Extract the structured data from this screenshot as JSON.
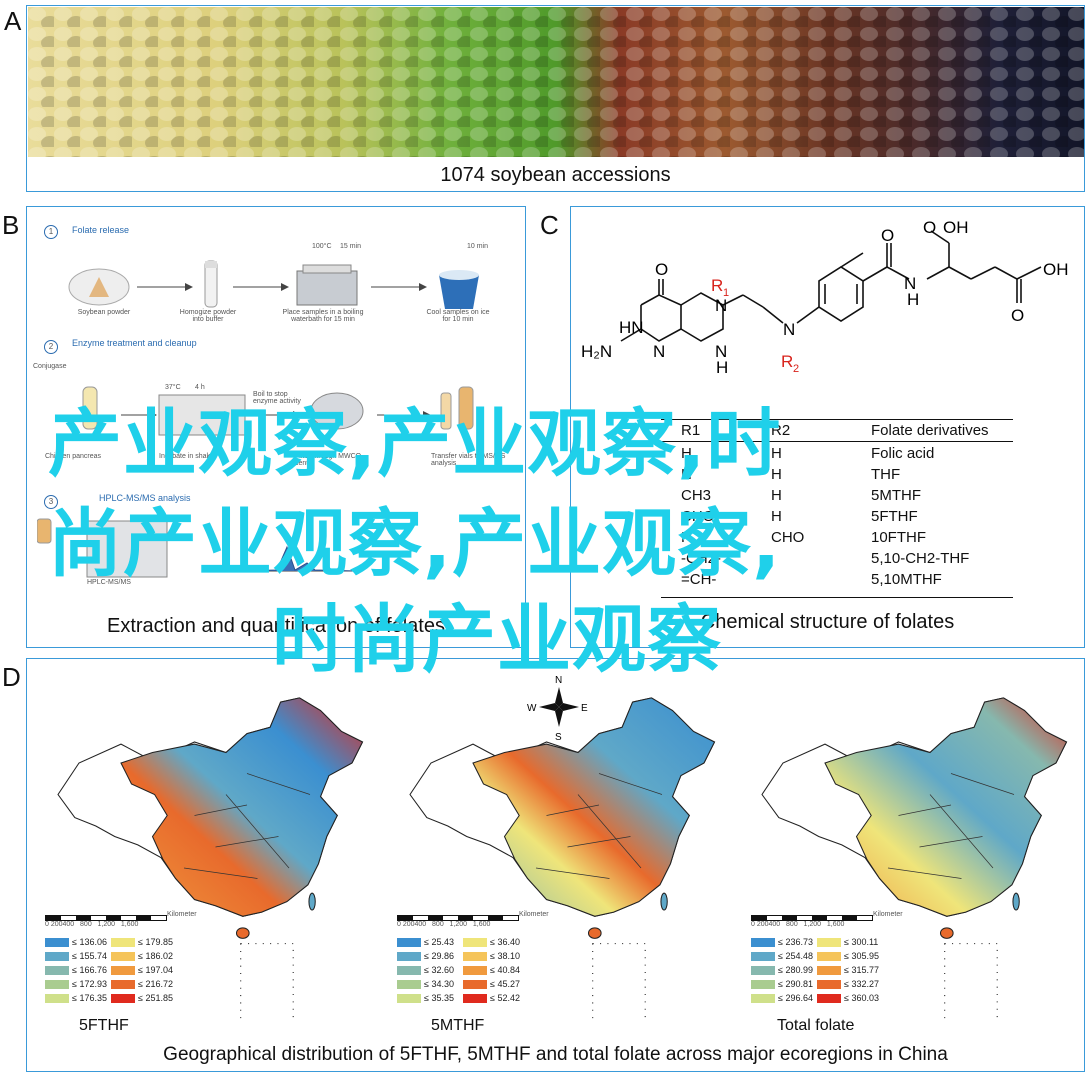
{
  "panels": {
    "a": {
      "letter": "A",
      "caption": "1074 soybean accessions"
    },
    "b": {
      "letter": "B",
      "caption": "Extraction and quantification of folates",
      "steps": [
        {
          "num": "1",
          "title": "Folate release",
          "items": [
            "Soybean powder",
            "Homogize powder into buffer",
            "Place samples in a boiling waterbath for 15 min",
            "Cool samples on ice for 10 min"
          ],
          "temp": "100°C",
          "time1": "15 min",
          "time2": "10 min"
        },
        {
          "num": "2",
          "title": "Enzyme treatment and cleanup",
          "items": [
            "Conjugase",
            "Chicken pancreas",
            "Incubate in shaker",
            "Boil to stop enzyme activity",
            "Filter through MWCO centr.",
            "Transfer vials to MS/MS analysis"
          ],
          "temp": "37°C",
          "time1": "4 h"
        },
        {
          "num": "3",
          "title": "HPLC-MS/MS analysis",
          "items": [
            "HPLC-MS/MS"
          ]
        }
      ]
    },
    "c": {
      "letter": "C",
      "caption": "Chemical structure of folates",
      "molecule": {
        "r1": "R",
        "r1_sub": "1",
        "r2": "R",
        "r2_sub": "2",
        "labels": [
          "O",
          "OH",
          "O",
          "OH",
          "O",
          "HN",
          "N",
          "H",
          "N",
          "H",
          "N",
          "H₂N",
          "N",
          "N",
          "H"
        ]
      },
      "table": {
        "headers": [
          "R1",
          "R2",
          "Folate derivatives"
        ],
        "rows": [
          [
            "H",
            "H",
            "Folic acid"
          ],
          [
            "H",
            "H",
            "THF"
          ],
          [
            "CH3",
            "H",
            "5MTHF"
          ],
          [
            "CHO",
            "H",
            "5FTHF"
          ],
          [
            "H",
            "CHO",
            "10FTHF"
          ],
          [
            "-CH2-",
            "",
            "5,10-CH2-THF"
          ],
          [
            "=CH-",
            "",
            "5,10MTHF"
          ]
        ]
      }
    },
    "d": {
      "letter": "D",
      "caption": "Geographical distribution of 5FTHF, 5MTHF and total folate across major ecoregions in China",
      "compass": {
        "n": "N",
        "s": "S",
        "e": "E",
        "w": "W"
      },
      "scale_ticks": "0 200400   800   1,200   1,600",
      "scale_unit": "Kilometer",
      "maps": [
        {
          "title": "5FTHF",
          "legend": [
            "≤ 136.06",
            "≤ 155.74",
            "≤ 166.76",
            "≤ 172.93",
            "≤ 176.35",
            "≤ 179.85",
            "≤ 186.02",
            "≤ 197.04",
            "≤ 216.72",
            "≤ 251.85"
          ]
        },
        {
          "title": "5MTHF",
          "legend": [
            "≤ 25.43",
            "≤ 29.86",
            "≤ 32.60",
            "≤ 34.30",
            "≤ 35.35",
            "≤ 36.40",
            "≤ 38.10",
            "≤ 40.84",
            "≤ 45.27",
            "≤ 52.42"
          ]
        },
        {
          "title": "Total folate",
          "legend": [
            "≤ 236.73",
            "≤ 254.48",
            "≤ 280.99",
            "≤ 290.81",
            "≤ 296.64",
            "≤ 300.11",
            "≤ 305.95",
            "≤ 315.77",
            "≤ 332.27",
            "≤ 360.03"
          ]
        }
      ],
      "legend_colors": [
        "#3b8fd0",
        "#5fa8c8",
        "#86b8ae",
        "#a9cc90",
        "#cfe08a",
        "#efe57a",
        "#f5c45a",
        "#f09a3e",
        "#e86a2c",
        "#e02a1e"
      ]
    }
  },
  "watermark": {
    "line1": "产业观察,产业观察,时",
    "line2": "尚产业观察,产业观察,",
    "line3": "时尚产业观察"
  }
}
